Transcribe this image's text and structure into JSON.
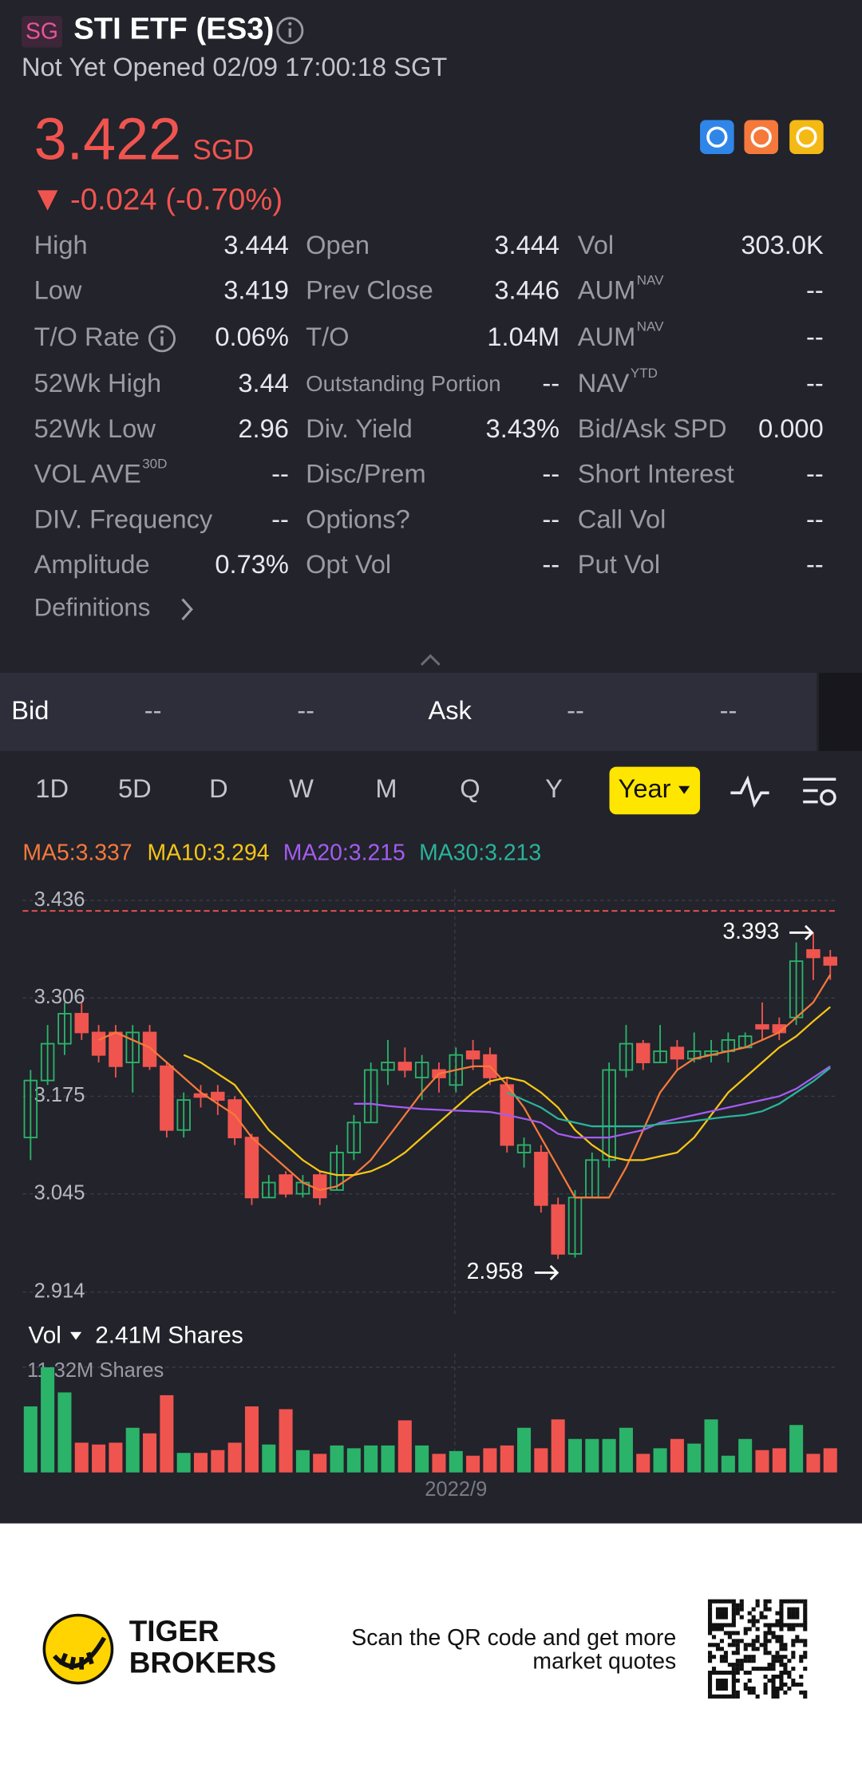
{
  "header": {
    "badge": "SG",
    "title": "STI ETF (ES3)",
    "status": "Not Yet Opened 02/09 17:00:18 SGT"
  },
  "quote": {
    "price": "3.422",
    "currency": "SGD",
    "change": "-0.024 (-0.70%)"
  },
  "stats": {
    "columns": [
      [
        {
          "label": "High",
          "value": "3.444"
        },
        {
          "label": "Low",
          "value": "3.419"
        },
        {
          "label": "T/O Rate",
          "value": "0.06%"
        },
        {
          "label": "52Wk High",
          "value": "3.44"
        },
        {
          "label": "52Wk Low",
          "value": "2.96"
        },
        {
          "label": "VOL AVE",
          "sup": "30D",
          "value": "--"
        },
        {
          "label": "DIV. Frequency",
          "value": "--"
        },
        {
          "label": "Amplitude",
          "value": "0.73%"
        }
      ],
      [
        {
          "label": "Open",
          "value": "3.444"
        },
        {
          "label": "Prev Close",
          "value": "3.446"
        },
        {
          "label": "T/O",
          "value": "1.04M"
        },
        {
          "label": "Outstanding Portion",
          "value": "--"
        },
        {
          "label": "Div. Yield",
          "value": "3.43%"
        },
        {
          "label": "Disc/Prem",
          "value": "--"
        },
        {
          "label": "Options?",
          "value": "--"
        },
        {
          "label": "Opt Vol",
          "value": "--"
        }
      ],
      [
        {
          "label": "Vol",
          "value": "303.0K"
        },
        {
          "label": "AUM",
          "sup": "NAV",
          "value": "--"
        },
        {
          "label": "AUM",
          "sup": "NAV",
          "value": "--"
        },
        {
          "label": "NAV",
          "sup": "YTD",
          "value": "--"
        },
        {
          "label": "Bid/Ask SPD",
          "value": "0.000"
        },
        {
          "label": "Short Interest",
          "value": "--"
        },
        {
          "label": "Call Vol",
          "value": "--"
        },
        {
          "label": "Put Vol",
          "value": "--"
        }
      ]
    ],
    "definitions": "Definitions"
  },
  "bid_ask": [
    "Bid",
    "--",
    "--",
    "Ask",
    "--",
    "--"
  ],
  "tabs": {
    "items": [
      "1D",
      "5D",
      "D",
      "W",
      "M",
      "Q",
      "Y"
    ],
    "selected": "Year"
  },
  "chart_data": {
    "type": "candlestick",
    "categories": [
      null,
      null,
      null,
      null,
      null,
      null,
      null,
      null,
      null,
      null,
      null,
      null,
      null,
      null,
      null,
      null,
      null,
      null,
      null,
      null,
      null,
      null,
      null,
      null,
      null,
      "2022/9",
      null,
      null,
      null,
      null,
      null,
      null,
      null,
      null,
      null,
      null,
      null,
      null,
      null,
      null,
      null,
      null,
      null,
      null,
      null,
      null,
      null,
      null
    ],
    "open": [
      3.12,
      3.196,
      3.245,
      3.285,
      3.26,
      3.26,
      3.22,
      3.26,
      3.215,
      3.13,
      3.178,
      3.18,
      3.17,
      3.12,
      3.04,
      3.07,
      3.045,
      3.07,
      3.05,
      3.1,
      3.14,
      3.21,
      3.22,
      3.2,
      3.21,
      3.19,
      3.235,
      3.23,
      3.19,
      3.1,
      3.1,
      3.03,
      2.965,
      3.04,
      3.09,
      3.21,
      3.245,
      3.22,
      3.24,
      3.225,
      3.23,
      3.235,
      3.24,
      3.27,
      3.27,
      3.28,
      3.37,
      3.36
    ],
    "high": [
      3.21,
      3.27,
      3.3,
      3.3,
      3.27,
      3.27,
      3.27,
      3.27,
      3.22,
      3.18,
      3.19,
      3.19,
      3.175,
      3.125,
      3.07,
      3.075,
      3.07,
      3.075,
      3.11,
      3.15,
      3.22,
      3.25,
      3.24,
      3.23,
      3.22,
      3.24,
      3.25,
      3.24,
      3.2,
      3.12,
      3.11,
      3.04,
      3.05,
      3.1,
      3.22,
      3.27,
      3.25,
      3.27,
      3.25,
      3.26,
      3.25,
      3.26,
      3.26,
      3.3,
      3.28,
      3.38,
      3.393,
      3.37
    ],
    "low": [
      3.09,
      3.19,
      3.23,
      3.25,
      3.22,
      3.2,
      3.18,
      3.21,
      3.12,
      3.12,
      3.16,
      3.15,
      3.11,
      3.03,
      3.04,
      3.04,
      3.04,
      3.03,
      3.05,
      3.09,
      3.14,
      3.19,
      3.2,
      3.17,
      3.18,
      3.18,
      3.21,
      3.19,
      3.1,
      3.08,
      3.02,
      2.958,
      2.96,
      3.04,
      3.08,
      3.2,
      3.21,
      3.22,
      3.21,
      3.22,
      3.22,
      3.22,
      3.24,
      3.25,
      3.25,
      3.27,
      3.33,
      3.33
    ],
    "close": [
      3.196,
      3.245,
      3.285,
      3.26,
      3.23,
      3.215,
      3.26,
      3.215,
      3.13,
      3.17,
      3.174,
      3.17,
      3.12,
      3.04,
      3.06,
      3.045,
      3.06,
      3.04,
      3.1,
      3.14,
      3.21,
      3.22,
      3.21,
      3.22,
      3.2,
      3.23,
      3.225,
      3.2,
      3.11,
      3.11,
      3.03,
      2.965,
      3.04,
      3.09,
      3.21,
      3.245,
      3.22,
      3.235,
      3.225,
      3.235,
      3.235,
      3.25,
      3.255,
      3.265,
      3.26,
      3.355,
      3.36,
      3.35
    ],
    "up_color": "#2bb36a",
    "down_color": "#f0544f",
    "ma": [
      {
        "label": "MA5:3.337",
        "color": "#f5793b",
        "values": [
          null,
          null,
          null,
          null,
          3.25,
          3.26,
          3.25,
          3.24,
          3.22,
          3.2,
          3.18,
          3.165,
          3.15,
          3.12,
          3.1,
          3.08,
          3.06,
          3.05,
          3.055,
          3.07,
          3.09,
          3.12,
          3.15,
          3.18,
          3.205,
          3.21,
          3.215,
          3.215,
          3.19,
          3.16,
          3.12,
          3.08,
          3.04,
          3.04,
          3.04,
          3.08,
          3.13,
          3.18,
          3.21,
          3.225,
          3.23,
          3.235,
          3.24,
          3.25,
          3.26,
          3.28,
          3.3,
          3.337
        ]
      },
      {
        "label": "MA10:3.294",
        "color": "#f5c518",
        "values": [
          null,
          null,
          null,
          null,
          null,
          null,
          null,
          null,
          null,
          3.23,
          3.22,
          3.205,
          3.19,
          3.16,
          3.13,
          3.11,
          3.09,
          3.075,
          3.07,
          3.07,
          3.075,
          3.085,
          3.1,
          3.12,
          3.14,
          3.16,
          3.18,
          3.195,
          3.2,
          3.195,
          3.18,
          3.16,
          3.13,
          3.11,
          3.095,
          3.09,
          3.09,
          3.095,
          3.1,
          3.12,
          3.15,
          3.18,
          3.2,
          3.22,
          3.24,
          3.255,
          3.275,
          3.294
        ]
      },
      {
        "label": "MA20:3.215",
        "color": "#a35cf0",
        "values": [
          null,
          null,
          null,
          null,
          null,
          null,
          null,
          null,
          null,
          null,
          null,
          null,
          null,
          null,
          null,
          null,
          null,
          null,
          null,
          3.165,
          3.165,
          3.162,
          3.16,
          3.158,
          3.157,
          3.156,
          3.155,
          3.154,
          3.15,
          3.145,
          3.14,
          3.125,
          3.12,
          3.12,
          3.12,
          3.125,
          3.13,
          3.14,
          3.145,
          3.15,
          3.155,
          3.16,
          3.165,
          3.17,
          3.175,
          3.185,
          3.2,
          3.215
        ]
      },
      {
        "label": "MA30:3.213",
        "color": "#2ab39a",
        "values": [
          null,
          null,
          null,
          null,
          null,
          null,
          null,
          null,
          null,
          null,
          null,
          null,
          null,
          null,
          null,
          null,
          null,
          null,
          null,
          null,
          null,
          null,
          null,
          null,
          null,
          null,
          null,
          null,
          3.18,
          3.17,
          3.16,
          3.145,
          3.14,
          3.135,
          3.135,
          3.135,
          3.135,
          3.138,
          3.14,
          3.142,
          3.145,
          3.148,
          3.15,
          3.155,
          3.165,
          3.18,
          3.195,
          3.213
        ]
      }
    ],
    "ylim": [
      2.885,
      3.451
    ],
    "yticks": [
      3.436,
      3.306,
      3.175,
      3.045,
      2.914
    ],
    "last_price": 3.422,
    "max_label": 3.393,
    "min_label": 2.958,
    "volume_title": "Vol",
    "volume_current": "2.41M Shares",
    "volume": [
      7.1,
      11.3,
      8.6,
      3.2,
      3.0,
      3.2,
      4.8,
      4.2,
      8.3,
      2.1,
      2.1,
      2.4,
      3.2,
      7.1,
      3.0,
      6.8,
      2.4,
      2.0,
      2.9,
      2.6,
      2.9,
      2.9,
      5.6,
      2.9,
      2.0,
      2.3,
      1.8,
      2.6,
      2.9,
      4.8,
      2.6,
      5.7,
      3.6,
      3.6,
      3.6,
      4.8,
      2.0,
      2.6,
      3.6,
      3.1,
      5.7,
      1.8,
      3.6,
      2.4,
      2.6,
      5.1,
      2.0,
      2.6
    ],
    "volume_ylim": [
      0,
      11.32
    ],
    "volume_yticks": [
      {
        "value": 11.32,
        "label": "11.32M Shares"
      }
    ],
    "grid": true
  },
  "footer": {
    "brand": [
      "TIGER",
      "BROKERS"
    ],
    "message": [
      "Scan the QR code and get more",
      "market quotes"
    ]
  }
}
